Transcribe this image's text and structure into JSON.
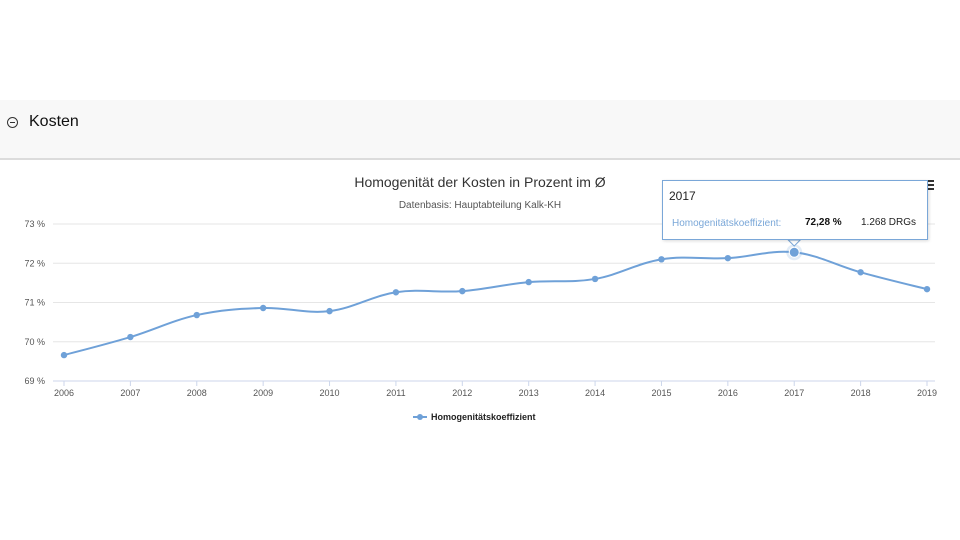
{
  "section": {
    "title": "Kosten",
    "collapse_icon": "minus-circle-icon"
  },
  "chart": {
    "title": "Homogenität der Kosten in Prozent im Ø",
    "subtitle": "Datenbasis: Hauptabteilung Kalk-KH",
    "menu_icon": "hamburger-menu-icon",
    "legend_label": "Homogenitätskoeffizient",
    "line_color": "#6fa1d8"
  },
  "tooltip": {
    "year": "2017",
    "series": "Homogenitätskoeffizient:",
    "value": "72,28 %",
    "extra": "1.268 DRGs"
  },
  "chart_data": {
    "type": "line",
    "title": "Homogenität der Kosten in Prozent im Ø",
    "subtitle": "Datenbasis: Hauptabteilung Kalk-KH",
    "xlabel": "",
    "ylabel": "",
    "categories": [
      "2006",
      "2007",
      "2008",
      "2009",
      "2010",
      "2011",
      "2012",
      "2013",
      "2014",
      "2015",
      "2016",
      "2017",
      "2018",
      "2019"
    ],
    "series": [
      {
        "name": "Homogenitätskoeffizient",
        "values": [
          69.66,
          70.12,
          70.68,
          70.86,
          70.78,
          71.26,
          71.29,
          71.52,
          71.6,
          72.1,
          72.13,
          72.28,
          71.77,
          71.34
        ]
      }
    ],
    "yticks": [
      "69 %",
      "70 %",
      "71 %",
      "72 %",
      "73 %"
    ],
    "ylim": [
      69,
      73
    ],
    "grid": true,
    "legend_position": "bottom",
    "annotations": [
      {
        "x": "2017",
        "text": "72,28 % · 1.268 DRGs"
      }
    ]
  }
}
